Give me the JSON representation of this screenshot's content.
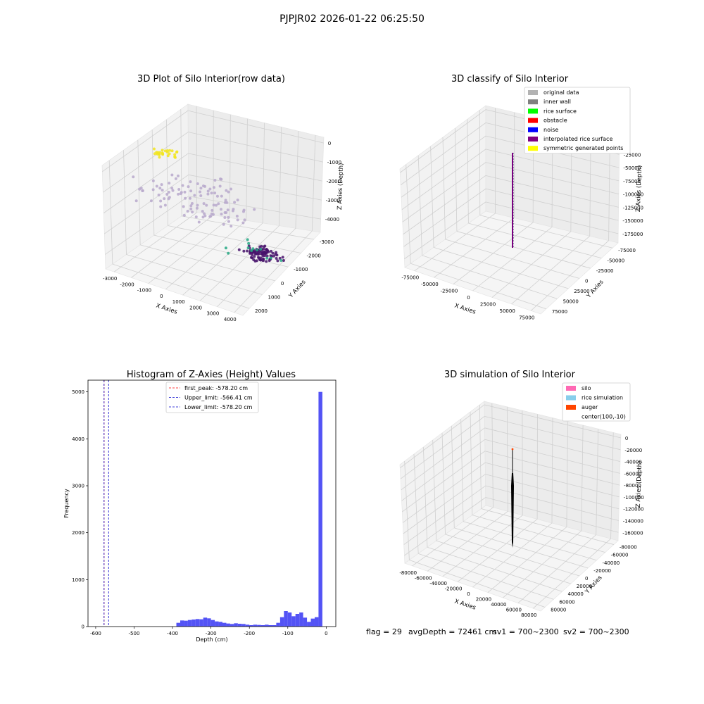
{
  "suptitle": "PJPJR02 2026-01-22 06:25:50",
  "footer": {
    "flag": "flag = 29",
    "avgDepth": "avgDepth = 72461 cm",
    "sv1": "sv1 = 700~2300",
    "sv2": "sv2 = 700~2300"
  },
  "chart_data": [
    {
      "type": "scatter",
      "title": "3D Plot of Silo Interior(row data)",
      "xlabel": "X Axies",
      "ylabel": "Y Axies",
      "zlabel": "Z Axies (Depth)",
      "xticks": [
        "-3000",
        "-2000",
        "-1000",
        "0",
        "1000",
        "2000",
        "3000",
        "4000"
      ],
      "yticks": [
        "-3000",
        "-2000",
        "-1000",
        "0",
        "1000",
        "2000"
      ],
      "zticks": [
        "0",
        "-1000",
        "-2000",
        "-3000",
        "-4000"
      ],
      "colormap": "viridis",
      "clusters": [
        {
          "label": "upper scattered points",
          "x_range": [
            -3000,
            1000
          ],
          "y_range": [
            -1000,
            2000
          ],
          "z_range": [
            -2800,
            -1500
          ],
          "count": 110,
          "color": "#b8a9cc"
        },
        {
          "label": "dense floor cluster",
          "x_range": [
            0,
            1200
          ],
          "y_range": [
            -1500,
            -500
          ],
          "z_range": [
            -4300,
            -3900
          ],
          "count": 90,
          "color": "#46126b"
        },
        {
          "label": "side points",
          "x_range": [
            1000,
            3000
          ],
          "y_range": [
            -500,
            1500
          ],
          "z_range": [
            -3800,
            -3300
          ],
          "count": 12,
          "color": "#26a884"
        },
        {
          "label": "top points",
          "x_range": [
            -1500,
            -800
          ],
          "y_range": [
            1500,
            2200
          ],
          "z_range": [
            -300,
            0
          ],
          "count": 25,
          "color": "#f2e51d"
        }
      ]
    },
    {
      "type": "scatter",
      "title": "3D classify of Silo Interior",
      "xlabel": "X Axies",
      "ylabel": "Y Axies",
      "zlabel": "Z Axies (Depth)",
      "xticks": [
        "-75000",
        "-50000",
        "-25000",
        "0",
        "25000",
        "50000",
        "75000"
      ],
      "yticks": [
        "-75000",
        "-50000",
        "-25000",
        "0",
        "25000",
        "50000",
        "75000"
      ],
      "zticks": [
        "0",
        "-25000",
        "-50000",
        "-75000",
        "-100000",
        "-125000",
        "-150000",
        "-175000"
      ],
      "legend": [
        {
          "label": "original data",
          "color": "#b3b3b3"
        },
        {
          "label": "inner wall",
          "color": "#808080"
        },
        {
          "label": "rice surface",
          "color": "#00ff00"
        },
        {
          "label": "obstacle",
          "color": "#ff0000"
        },
        {
          "label": "noise",
          "color": "#0000ff"
        },
        {
          "label": "interpolated rice surface",
          "color": "#800080"
        },
        {
          "label": "symmetric generated points",
          "color": "#ffff00"
        }
      ],
      "legend_loc": "upper-right",
      "line": {
        "x": 0,
        "y": 0,
        "z_range": [
          -175000,
          0
        ],
        "color": "#800080"
      }
    },
    {
      "type": "bar",
      "title": "Histogram of Z-Axies (Height) Values",
      "xlabel": "Depth (cm)",
      "ylabel": "Frequency",
      "xlim": [
        -620,
        25
      ],
      "ylim": [
        0,
        5250
      ],
      "xticks": [
        -600,
        -500,
        -400,
        -300,
        -200,
        -100,
        0
      ],
      "yticks": [
        0,
        1000,
        2000,
        3000,
        4000,
        5000
      ],
      "bar_color": "#4a4af4",
      "bin_width": 10,
      "bins": [
        {
          "x": -390,
          "count": 80
        },
        {
          "x": -380,
          "count": 130
        },
        {
          "x": -370,
          "count": 125
        },
        {
          "x": -360,
          "count": 140
        },
        {
          "x": -350,
          "count": 150
        },
        {
          "x": -340,
          "count": 160
        },
        {
          "x": -330,
          "count": 155
        },
        {
          "x": -320,
          "count": 190
        },
        {
          "x": -310,
          "count": 175
        },
        {
          "x": -300,
          "count": 140
        },
        {
          "x": -290,
          "count": 110
        },
        {
          "x": -280,
          "count": 100
        },
        {
          "x": -270,
          "count": 80
        },
        {
          "x": -260,
          "count": 65
        },
        {
          "x": -250,
          "count": 55
        },
        {
          "x": -240,
          "count": 70
        },
        {
          "x": -230,
          "count": 60
        },
        {
          "x": -220,
          "count": 55
        },
        {
          "x": -210,
          "count": 40
        },
        {
          "x": -200,
          "count": 30
        },
        {
          "x": -190,
          "count": 40
        },
        {
          "x": -180,
          "count": 35
        },
        {
          "x": -170,
          "count": 30
        },
        {
          "x": -160,
          "count": 40
        },
        {
          "x": -150,
          "count": 30
        },
        {
          "x": -140,
          "count": 30
        },
        {
          "x": -130,
          "count": 80
        },
        {
          "x": -120,
          "count": 200
        },
        {
          "x": -110,
          "count": 330
        },
        {
          "x": -100,
          "count": 300
        },
        {
          "x": -90,
          "count": 220
        },
        {
          "x": -80,
          "count": 270
        },
        {
          "x": -70,
          "count": 300
        },
        {
          "x": -60,
          "count": 190
        },
        {
          "x": -50,
          "count": 100
        },
        {
          "x": -40,
          "count": 170
        },
        {
          "x": -30,
          "count": 200
        },
        {
          "x": -20,
          "count": 5000
        }
      ],
      "vlines": [
        {
          "label": "first_peak: -578.20 cm",
          "x": -578.2,
          "color": "#ff0000"
        },
        {
          "label": "Upper_limit: -566.41 cm",
          "x": -566.41,
          "color": "#0000cc"
        },
        {
          "label": "Lower_limit: -578.20 cm",
          "x": -578.2,
          "color": "#0000cc"
        }
      ],
      "legend_loc": "top-center"
    },
    {
      "type": "scatter",
      "title": "3D simulation of Silo Interior",
      "xlabel": "X Axies",
      "ylabel": "Y Axies",
      "zlabel": "Z Axies (Depth)",
      "xticks": [
        "-80000",
        "-60000",
        "-40000",
        "-20000",
        "0",
        "20000",
        "40000",
        "60000",
        "80000"
      ],
      "yticks": [
        "-80000",
        "-60000",
        "-40000",
        "-20000",
        "0",
        "20000",
        "40000",
        "60000",
        "80000"
      ],
      "zticks": [
        "0",
        "-20000",
        "-40000",
        "-60000",
        "-80000",
        "-100000",
        "-120000",
        "-140000",
        "-160000"
      ],
      "legend": [
        {
          "label": "silo",
          "color": "#ff69b4"
        },
        {
          "label": "rice simulation",
          "color": "#87ceeb"
        },
        {
          "label": "auger",
          "color": "#ff4500"
        },
        {
          "label": "center(100,-10)",
          "color": "#ffffff"
        }
      ],
      "legend_loc": "upper-right",
      "object": {
        "x": 0,
        "y": 0,
        "z_range": [
          -160000,
          0
        ],
        "color": "#000000"
      }
    }
  ]
}
